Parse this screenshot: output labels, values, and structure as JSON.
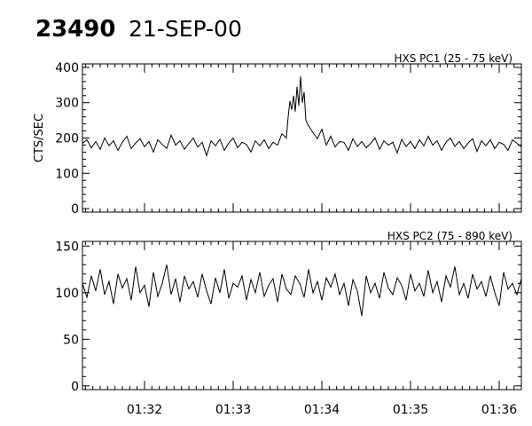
{
  "header": {
    "observation_id": "23490",
    "date": "21-SEP-00"
  },
  "chart_data": [
    {
      "type": "line",
      "title": "HXS PC1 (25 - 75 keV)",
      "xlabel": "",
      "ylabel": "CTS/SEC",
      "ylim": [
        -10,
        410
      ],
      "yticks": [
        0,
        100,
        200,
        300,
        400
      ],
      "xlim": [
        91.3,
        96.25
      ],
      "xticks": [
        92,
        93,
        94,
        95,
        96
      ],
      "xtick_labels": [
        "",
        "",
        "",
        "",
        ""
      ],
      "grid": false,
      "series": [
        {
          "color": "#000000",
          "x": [
            91.3,
            91.35,
            91.4,
            91.45,
            91.5,
            91.55,
            91.6,
            91.65,
            91.7,
            91.75,
            91.8,
            91.85,
            91.9,
            91.95,
            92.0,
            92.05,
            92.1,
            92.15,
            92.2,
            92.25,
            92.3,
            92.35,
            92.4,
            92.45,
            92.5,
            92.55,
            92.6,
            92.65,
            92.7,
            92.75,
            92.8,
            92.85,
            92.9,
            92.95,
            93.0,
            93.05,
            93.1,
            93.15,
            93.2,
            93.25,
            93.3,
            93.35,
            93.4,
            93.45,
            93.5,
            93.55,
            93.6,
            93.62,
            93.64,
            93.66,
            93.68,
            93.7,
            93.72,
            93.74,
            93.76,
            93.78,
            93.8,
            93.82,
            93.85,
            93.9,
            93.95,
            94.0,
            94.05,
            94.1,
            94.15,
            94.2,
            94.25,
            94.3,
            94.35,
            94.4,
            94.45,
            94.5,
            94.55,
            94.6,
            94.65,
            94.7,
            94.75,
            94.8,
            94.85,
            94.9,
            94.95,
            95.0,
            95.05,
            95.1,
            95.15,
            95.2,
            95.25,
            95.3,
            95.35,
            95.4,
            95.45,
            95.5,
            95.55,
            95.6,
            95.65,
            95.7,
            95.75,
            95.8,
            95.85,
            95.9,
            95.95,
            96.0,
            96.05,
            96.1,
            96.15,
            96.2,
            96.25
          ],
          "y": [
            185,
            195,
            172,
            190,
            168,
            200,
            178,
            192,
            165,
            188,
            205,
            170,
            186,
            198,
            175,
            190,
            160,
            195,
            182,
            170,
            208,
            180,
            192,
            168,
            185,
            200,
            174,
            188,
            150,
            192,
            178,
            196,
            165,
            186,
            200,
            172,
            188,
            182,
            160,
            192,
            178,
            195,
            170,
            188,
            180,
            212,
            200,
            260,
            305,
            280,
            320,
            275,
            345,
            292,
            375,
            300,
            330,
            250,
            235,
            215,
            198,
            225,
            180,
            205,
            175,
            190,
            188,
            165,
            198,
            176,
            190,
            172,
            185,
            200,
            168,
            192,
            180,
            188,
            158,
            196,
            176,
            190,
            170,
            195,
            178,
            205,
            180,
            192,
            165,
            188,
            200,
            176,
            190,
            170,
            186,
            198,
            162,
            192,
            178,
            195,
            170,
            188,
            182,
            165,
            195,
            185,
            175
          ]
        }
      ]
    },
    {
      "type": "line",
      "title": "HXS PC2 (75 - 890 keV)",
      "xlabel": "",
      "ylabel": "",
      "ylim": [
        -4,
        155
      ],
      "yticks": [
        0,
        50,
        100,
        150
      ],
      "xlim": [
        91.3,
        96.25
      ],
      "xticks": [
        92,
        93,
        94,
        95,
        96
      ],
      "xtick_labels": [
        "01:32",
        "01:33",
        "01:34",
        "01:35",
        "01:36"
      ],
      "grid": false,
      "series": [
        {
          "color": "#000000",
          "x": [
            91.3,
            91.35,
            91.4,
            91.45,
            91.5,
            91.55,
            91.6,
            91.65,
            91.7,
            91.75,
            91.8,
            91.85,
            91.9,
            91.95,
            92.0,
            92.05,
            92.1,
            92.15,
            92.2,
            92.25,
            92.3,
            92.35,
            92.4,
            92.45,
            92.5,
            92.55,
            92.6,
            92.65,
            92.7,
            92.75,
            92.8,
            92.85,
            92.9,
            92.95,
            93.0,
            93.05,
            93.1,
            93.15,
            93.2,
            93.25,
            93.3,
            93.35,
            93.4,
            93.45,
            93.5,
            93.55,
            93.6,
            93.65,
            93.7,
            93.75,
            93.8,
            93.85,
            93.9,
            93.95,
            94.0,
            94.05,
            94.1,
            94.15,
            94.2,
            94.25,
            94.3,
            94.35,
            94.4,
            94.45,
            94.5,
            94.55,
            94.6,
            94.65,
            94.7,
            94.75,
            94.8,
            94.85,
            94.9,
            94.95,
            95.0,
            95.05,
            95.1,
            95.15,
            95.2,
            95.25,
            95.3,
            95.35,
            95.4,
            95.45,
            95.5,
            95.55,
            95.6,
            95.65,
            95.7,
            95.75,
            95.8,
            95.85,
            95.9,
            95.95,
            96.0,
            96.05,
            96.1,
            96.15,
            96.2,
            96.25
          ],
          "y": [
            110,
            95,
            118,
            102,
            125,
            98,
            112,
            88,
            120,
            105,
            115,
            92,
            128,
            100,
            108,
            85,
            122,
            96,
            110,
            130,
            98,
            115,
            90,
            118,
            104,
            112,
            95,
            120,
            102,
            88,
            116,
            100,
            125,
            94,
            110,
            106,
            118,
            92,
            114,
            100,
            122,
            96,
            108,
            115,
            90,
            120,
            104,
            98,
            118,
            110,
            95,
            125,
            100,
            112,
            92,
            116,
            106,
            120,
            98,
            110,
            86,
            114,
            102,
            75,
            118,
            100,
            110,
            94,
            122,
            105,
            98,
            116,
            108,
            92,
            120,
            102,
            110,
            96,
            124,
            100,
            112,
            90,
            118,
            106,
            128,
            98,
            110,
            94,
            120,
            104,
            112,
            96,
            118,
            100,
            86,
            122,
            104,
            110,
            98,
            115
          ]
        }
      ]
    }
  ]
}
